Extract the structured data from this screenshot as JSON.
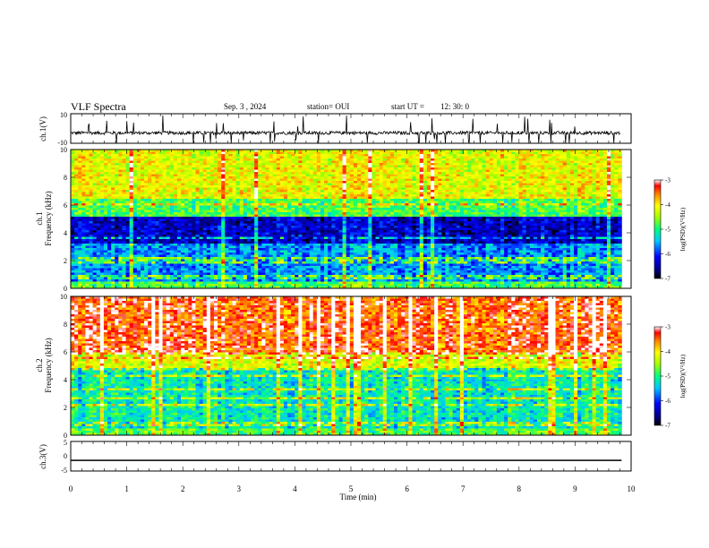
{
  "header": {
    "title": "VLF Spectra",
    "date": "Sep. 3 , 2024",
    "station": "station= OUI",
    "start": "start UT =",
    "start_time": "12: 30: 0"
  },
  "colors": {
    "background": "#ffffff",
    "axes": "#000000",
    "trace": "#000000"
  },
  "chart_data": [
    {
      "type": "line",
      "panel": "ch1-waveform",
      "ylabel": "ch.1(V)",
      "ylim": [
        -10,
        10
      ],
      "yticks": [
        "10",
        "-10"
      ],
      "xlim": [
        0,
        10
      ],
      "description_of_series": "broadband voltage, baseline near -3 V, spikes toward +10 and -10",
      "series": [
        {
          "baseline": -3,
          "x": [
            0,
            0.5,
            1,
            1.5,
            2,
            2.5,
            3,
            3.5,
            4,
            4.5,
            5,
            5.5,
            6,
            6.5,
            7,
            7.5,
            8,
            8.5,
            9,
            9.5,
            9.8
          ],
          "values": [
            -3,
            -3,
            -3,
            -3,
            -3,
            -3,
            -3,
            -3,
            -3,
            -3,
            -3,
            -3,
            -3,
            -3,
            -3,
            -3,
            -3,
            -3,
            -3,
            -3,
            -3
          ]
        }
      ]
    },
    {
      "type": "heatmap",
      "panel": "ch1-spectrogram",
      "label_channel": "ch.1",
      "ylabel": "Frequency (kHz)",
      "ylim": [
        0,
        10
      ],
      "yticks": [
        "0",
        "2",
        "4",
        "6",
        "8",
        "10"
      ],
      "xlim": [
        0,
        10
      ],
      "x_extent_data": 9.83,
      "colorbar": {
        "label": "log(PSD)(V²/Hz)",
        "range": [
          -7,
          -3
        ],
        "ticks": [
          "-3",
          "-4",
          "-5",
          "-6",
          "-7"
        ]
      }
    },
    {
      "type": "heatmap",
      "panel": "ch2-spectrogram",
      "label_channel": "ch.2",
      "ylabel": "Frequency (kHz)",
      "ylim": [
        0,
        10
      ],
      "yticks": [
        "0",
        "2",
        "4",
        "6",
        "8",
        "10"
      ],
      "xlim": [
        0,
        10
      ],
      "x_extent_data": 9.83,
      "colorbar": {
        "label": "log(PSD)(V²/Hz)",
        "range": [
          -7,
          -3
        ],
        "ticks": [
          "-3",
          "-4",
          "-5",
          "-6",
          "-7"
        ]
      }
    },
    {
      "type": "line",
      "panel": "ch3-waveform",
      "ylabel": "ch.3(V)",
      "ylim": [
        -5,
        5
      ],
      "yticks": [
        "5",
        "0",
        "-5"
      ],
      "xlim": [
        0,
        10
      ],
      "series": [
        {
          "x": [
            0,
            9.83
          ],
          "values": [
            -1.4,
            -1.4
          ]
        }
      ]
    }
  ],
  "xaxis": {
    "label": "Time (min)",
    "ticks": [
      "0",
      "1",
      "2",
      "3",
      "4",
      "5",
      "6",
      "7",
      "8",
      "9",
      "10"
    ]
  }
}
